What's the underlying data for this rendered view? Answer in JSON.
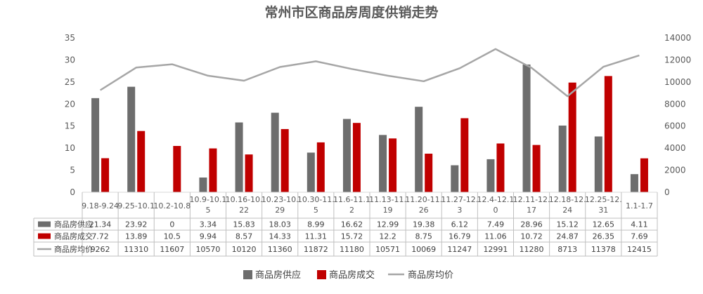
{
  "chart_data": {
    "type": "bar",
    "title": "常州市区商品房周度供销走势",
    "categories": [
      [
        "9.18-9.24"
      ],
      [
        "9.25-10.1"
      ],
      [
        "10.2-10.8"
      ],
      [
        "10.9-10.1",
        "5"
      ],
      [
        "10.16-10.",
        "22"
      ],
      [
        "10.23-10.",
        "29"
      ],
      [
        "10.30-11.",
        "5"
      ],
      [
        "11.6-11.1",
        "2"
      ],
      [
        "11.13-11.",
        "19"
      ],
      [
        "11.20-11.",
        "26"
      ],
      [
        "11.27-12.",
        "3"
      ],
      [
        "12.4-12.1",
        "0"
      ],
      [
        "12.11-12.",
        "17"
      ],
      [
        "12.18-12.",
        "24"
      ],
      [
        "12.25-12.",
        "31"
      ],
      [
        "1.1-1.7"
      ]
    ],
    "series": [
      {
        "name": "商品房供应",
        "kind": "bar",
        "axis": "left",
        "color": "#6d6d6d",
        "values": [
          21.34,
          23.92,
          0,
          3.34,
          15.83,
          18.03,
          8.99,
          16.62,
          12.99,
          19.38,
          6.12,
          7.49,
          28.96,
          15.12,
          12.65,
          4.11
        ],
        "labels": [
          "21.34",
          "23.92",
          "0",
          "3.34",
          "15.83",
          "18.03",
          "8.99",
          "16.62",
          "12.99",
          "19.38",
          "6.12",
          "7.49",
          "28.96",
          "15.12",
          "12.65",
          "4.11"
        ]
      },
      {
        "name": "商品房成交",
        "kind": "bar",
        "axis": "left",
        "color": "#c00000",
        "values": [
          7.72,
          13.89,
          10.5,
          9.94,
          8.57,
          14.33,
          11.31,
          15.72,
          12.2,
          8.75,
          16.79,
          11.06,
          10.72,
          24.87,
          26.35,
          7.69
        ],
        "labels": [
          "7.72",
          "13.89",
          "10.5",
          "9.94",
          "8.57",
          "14.33",
          "11.31",
          "15.72",
          "12.2",
          "8.75",
          "16.79",
          "11.06",
          "10.72",
          "24.87",
          "26.35",
          "7.69"
        ]
      },
      {
        "name": "商品房均价",
        "kind": "line",
        "axis": "right",
        "color": "#a6a6a6",
        "values": [
          9262,
          11310,
          11607,
          10570,
          10120,
          11360,
          11872,
          11180,
          10571,
          10069,
          11247,
          12991,
          11280,
          8713,
          11378,
          12415
        ],
        "labels": [
          "9262",
          "11310",
          "11607",
          "10570",
          "10120",
          "11360",
          "11872",
          "11180",
          "10571",
          "10069",
          "11247",
          "12991",
          "11280",
          "8713",
          "11378",
          "12415"
        ]
      }
    ],
    "y_left": {
      "ylim": [
        0,
        35
      ],
      "ticks": [
        "0",
        "5",
        "10",
        "15",
        "20",
        "25",
        "30",
        "35"
      ]
    },
    "y_right": {
      "ylim": [
        0,
        14000
      ],
      "ticks": [
        "0",
        "2000",
        "4000",
        "6000",
        "8000",
        "10000",
        "12000",
        "14000"
      ]
    },
    "grid": false,
    "legend": {
      "position": "bottom"
    },
    "data_table": true
  }
}
